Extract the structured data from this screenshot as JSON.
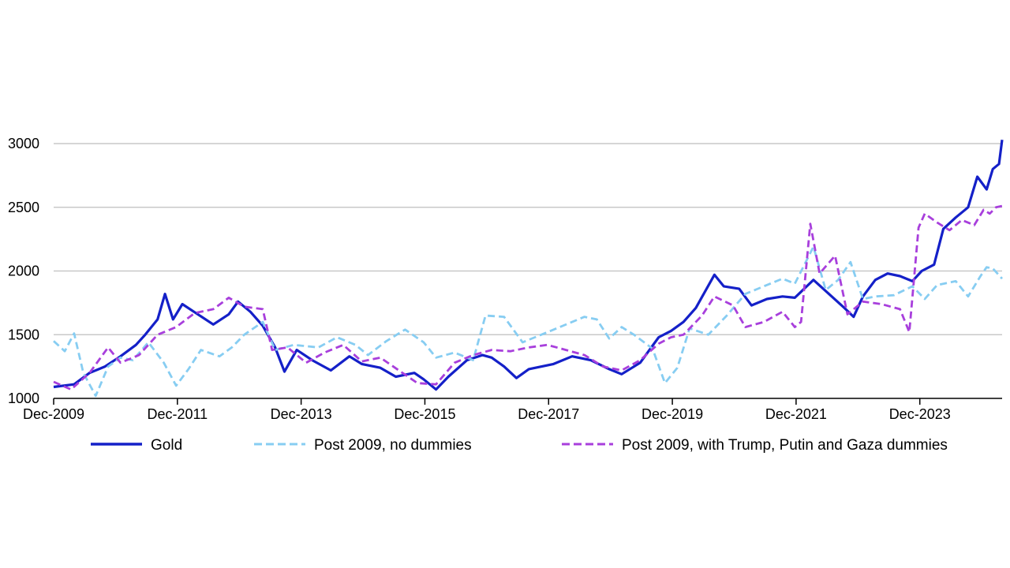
{
  "chart_data": {
    "type": "line",
    "title": "",
    "xlabel": "",
    "ylabel": "",
    "xlim": [
      2009.92,
      2025.25
    ],
    "ylim": [
      1000,
      3000
    ],
    "yticks": [
      1000,
      1500,
      2000,
      2500,
      3000
    ],
    "xtick_labels": [
      "Dec-2009",
      "Dec-2011",
      "Dec-2013",
      "Dec-2015",
      "Dec-2017",
      "Dec-2019",
      "Dec-2021",
      "Dec-2023"
    ],
    "xtick_positions": [
      2009.92,
      2011.92,
      2013.92,
      2015.92,
      2017.92,
      2019.92,
      2021.92,
      2023.92
    ],
    "grid": "horizontal",
    "legend_position": "bottom",
    "series": [
      {
        "name": "Gold",
        "color": "#1420c8",
        "style": "solid",
        "points": [
          [
            2009.92,
            1090
          ],
          [
            2010.25,
            1110
          ],
          [
            2010.5,
            1200
          ],
          [
            2010.75,
            1250
          ],
          [
            2011.0,
            1330
          ],
          [
            2011.25,
            1420
          ],
          [
            2011.4,
            1500
          ],
          [
            2011.6,
            1620
          ],
          [
            2011.72,
            1820
          ],
          [
            2011.85,
            1620
          ],
          [
            2012.0,
            1740
          ],
          [
            2012.25,
            1660
          ],
          [
            2012.5,
            1580
          ],
          [
            2012.75,
            1660
          ],
          [
            2012.9,
            1760
          ],
          [
            2013.1,
            1680
          ],
          [
            2013.3,
            1570
          ],
          [
            2013.5,
            1400
          ],
          [
            2013.65,
            1210
          ],
          [
            2013.85,
            1380
          ],
          [
            2014.1,
            1300
          ],
          [
            2014.4,
            1220
          ],
          [
            2014.7,
            1330
          ],
          [
            2014.9,
            1270
          ],
          [
            2015.2,
            1240
          ],
          [
            2015.45,
            1170
          ],
          [
            2015.75,
            1200
          ],
          [
            2015.9,
            1150
          ],
          [
            2016.1,
            1070
          ],
          [
            2016.3,
            1170
          ],
          [
            2016.6,
            1300
          ],
          [
            2016.85,
            1340
          ],
          [
            2017.0,
            1320
          ],
          [
            2017.2,
            1250
          ],
          [
            2017.4,
            1160
          ],
          [
            2017.6,
            1230
          ],
          [
            2018.0,
            1270
          ],
          [
            2018.3,
            1330
          ],
          [
            2018.6,
            1300
          ],
          [
            2018.9,
            1230
          ],
          [
            2019.1,
            1190
          ],
          [
            2019.4,
            1280
          ],
          [
            2019.7,
            1480
          ],
          [
            2019.9,
            1530
          ],
          [
            2020.1,
            1600
          ],
          [
            2020.3,
            1710
          ],
          [
            2020.6,
            1970
          ],
          [
            2020.75,
            1880
          ],
          [
            2021.0,
            1860
          ],
          [
            2021.2,
            1730
          ],
          [
            2021.45,
            1780
          ],
          [
            2021.7,
            1800
          ],
          [
            2021.9,
            1790
          ],
          [
            2022.2,
            1930
          ],
          [
            2022.45,
            1820
          ],
          [
            2022.7,
            1710
          ],
          [
            2022.85,
            1640
          ],
          [
            2023.0,
            1800
          ],
          [
            2023.2,
            1930
          ],
          [
            2023.4,
            1980
          ],
          [
            2023.6,
            1960
          ],
          [
            2023.8,
            1920
          ],
          [
            2023.95,
            2000
          ],
          [
            2024.15,
            2050
          ],
          [
            2024.3,
            2330
          ],
          [
            2024.5,
            2420
          ],
          [
            2024.7,
            2500
          ],
          [
            2024.85,
            2740
          ],
          [
            2025.0,
            2640
          ],
          [
            2025.1,
            2800
          ],
          [
            2025.2,
            2840
          ],
          [
            2025.25,
            3030
          ]
        ]
      },
      {
        "name": "Post 2009, no dummies",
        "color": "#87cdf2",
        "style": "dashed",
        "points": [
          [
            2009.92,
            1450
          ],
          [
            2010.1,
            1370
          ],
          [
            2010.25,
            1510
          ],
          [
            2010.4,
            1200
          ],
          [
            2010.6,
            1020
          ],
          [
            2010.8,
            1250
          ],
          [
            2011.0,
            1320
          ],
          [
            2011.2,
            1300
          ],
          [
            2011.45,
            1440
          ],
          [
            2011.7,
            1280
          ],
          [
            2011.9,
            1100
          ],
          [
            2012.1,
            1230
          ],
          [
            2012.3,
            1380
          ],
          [
            2012.6,
            1330
          ],
          [
            2012.8,
            1400
          ],
          [
            2013.0,
            1500
          ],
          [
            2013.3,
            1600
          ],
          [
            2013.5,
            1380
          ],
          [
            2013.8,
            1420
          ],
          [
            2014.2,
            1400
          ],
          [
            2014.5,
            1480
          ],
          [
            2014.8,
            1420
          ],
          [
            2015.0,
            1340
          ],
          [
            2015.3,
            1450
          ],
          [
            2015.6,
            1540
          ],
          [
            2015.9,
            1440
          ],
          [
            2016.1,
            1320
          ],
          [
            2016.4,
            1360
          ],
          [
            2016.7,
            1300
          ],
          [
            2016.9,
            1650
          ],
          [
            2017.2,
            1640
          ],
          [
            2017.5,
            1440
          ],
          [
            2017.8,
            1500
          ],
          [
            2018.1,
            1560
          ],
          [
            2018.5,
            1640
          ],
          [
            2018.7,
            1620
          ],
          [
            2018.9,
            1470
          ],
          [
            2019.1,
            1560
          ],
          [
            2019.3,
            1500
          ],
          [
            2019.6,
            1390
          ],
          [
            2019.8,
            1120
          ],
          [
            2020.0,
            1240
          ],
          [
            2020.2,
            1550
          ],
          [
            2020.5,
            1500
          ],
          [
            2020.8,
            1650
          ],
          [
            2021.1,
            1820
          ],
          [
            2021.4,
            1880
          ],
          [
            2021.7,
            1940
          ],
          [
            2021.9,
            1900
          ],
          [
            2022.2,
            2190
          ],
          [
            2022.4,
            1850
          ],
          [
            2022.6,
            1930
          ],
          [
            2022.8,
            2070
          ],
          [
            2023.0,
            1780
          ],
          [
            2023.2,
            1800
          ],
          [
            2023.5,
            1810
          ],
          [
            2023.8,
            1880
          ],
          [
            2024.0,
            1780
          ],
          [
            2024.2,
            1890
          ],
          [
            2024.5,
            1920
          ],
          [
            2024.7,
            1800
          ],
          [
            2024.9,
            1960
          ],
          [
            2025.0,
            2030
          ],
          [
            2025.1,
            2020
          ],
          [
            2025.25,
            1940
          ]
        ]
      },
      {
        "name": "Post 2009, with Trump, Putin and Gaza dummies",
        "color": "#a83fdc",
        "style": "dashed",
        "points": [
          [
            2009.92,
            1130
          ],
          [
            2010.2,
            1070
          ],
          [
            2010.5,
            1200
          ],
          [
            2010.8,
            1400
          ],
          [
            2011.0,
            1280
          ],
          [
            2011.3,
            1340
          ],
          [
            2011.6,
            1500
          ],
          [
            2011.9,
            1560
          ],
          [
            2012.2,
            1670
          ],
          [
            2012.5,
            1700
          ],
          [
            2012.75,
            1790
          ],
          [
            2013.0,
            1720
          ],
          [
            2013.3,
            1700
          ],
          [
            2013.45,
            1380
          ],
          [
            2013.7,
            1400
          ],
          [
            2014.0,
            1280
          ],
          [
            2014.3,
            1360
          ],
          [
            2014.6,
            1420
          ],
          [
            2014.9,
            1290
          ],
          [
            2015.2,
            1320
          ],
          [
            2015.5,
            1220
          ],
          [
            2015.8,
            1120
          ],
          [
            2016.1,
            1110
          ],
          [
            2016.4,
            1280
          ],
          [
            2016.7,
            1340
          ],
          [
            2017.0,
            1380
          ],
          [
            2017.3,
            1370
          ],
          [
            2017.6,
            1400
          ],
          [
            2017.9,
            1420
          ],
          [
            2018.2,
            1380
          ],
          [
            2018.5,
            1340
          ],
          [
            2018.8,
            1250
          ],
          [
            2019.1,
            1220
          ],
          [
            2019.4,
            1300
          ],
          [
            2019.7,
            1430
          ],
          [
            2019.9,
            1480
          ],
          [
            2020.1,
            1500
          ],
          [
            2020.4,
            1650
          ],
          [
            2020.6,
            1800
          ],
          [
            2020.9,
            1730
          ],
          [
            2021.1,
            1560
          ],
          [
            2021.4,
            1600
          ],
          [
            2021.7,
            1680
          ],
          [
            2021.9,
            1560
          ],
          [
            2022.0,
            1600
          ],
          [
            2022.15,
            2370
          ],
          [
            2022.3,
            1980
          ],
          [
            2022.55,
            2120
          ],
          [
            2022.75,
            1660
          ],
          [
            2023.0,
            1760
          ],
          [
            2023.3,
            1740
          ],
          [
            2023.6,
            1700
          ],
          [
            2023.75,
            1520
          ],
          [
            2023.9,
            2340
          ],
          [
            2024.0,
            2450
          ],
          [
            2024.2,
            2380
          ],
          [
            2024.4,
            2320
          ],
          [
            2024.6,
            2400
          ],
          [
            2024.8,
            2360
          ],
          [
            2024.95,
            2480
          ],
          [
            2025.05,
            2450
          ],
          [
            2025.15,
            2500
          ],
          [
            2025.25,
            2510
          ]
        ]
      }
    ]
  }
}
